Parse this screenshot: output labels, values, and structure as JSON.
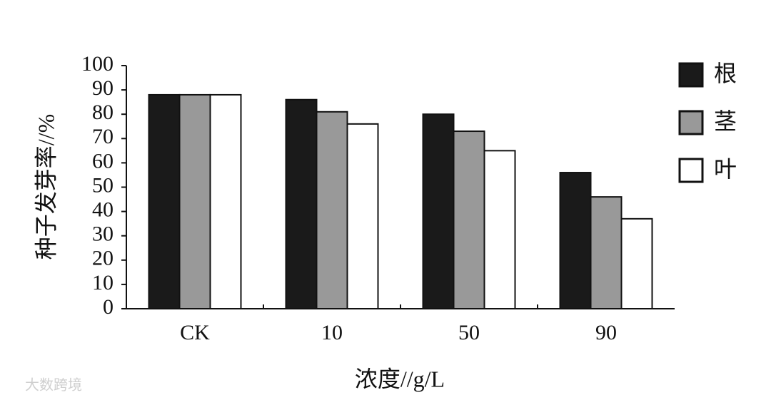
{
  "chart_data": {
    "type": "bar",
    "y_label": "种子发芽率//%",
    "x_label": "浓度//g/L",
    "categories": [
      "CK",
      "10",
      "50",
      "90"
    ],
    "series": [
      {
        "name": "根",
        "color": "#1a1a1a",
        "values": [
          88,
          86,
          80,
          56
        ]
      },
      {
        "name": "茎",
        "color": "#999999",
        "values": [
          88,
          81,
          73,
          46
        ]
      },
      {
        "name": "叶",
        "color": "#ffffff",
        "values": [
          88,
          76,
          65,
          37
        ]
      }
    ],
    "ylim": [
      0,
      100
    ],
    "yticks": [
      0,
      10,
      20,
      30,
      40,
      50,
      60,
      70,
      80,
      90,
      100
    ],
    "watermark": "大数跨境"
  }
}
